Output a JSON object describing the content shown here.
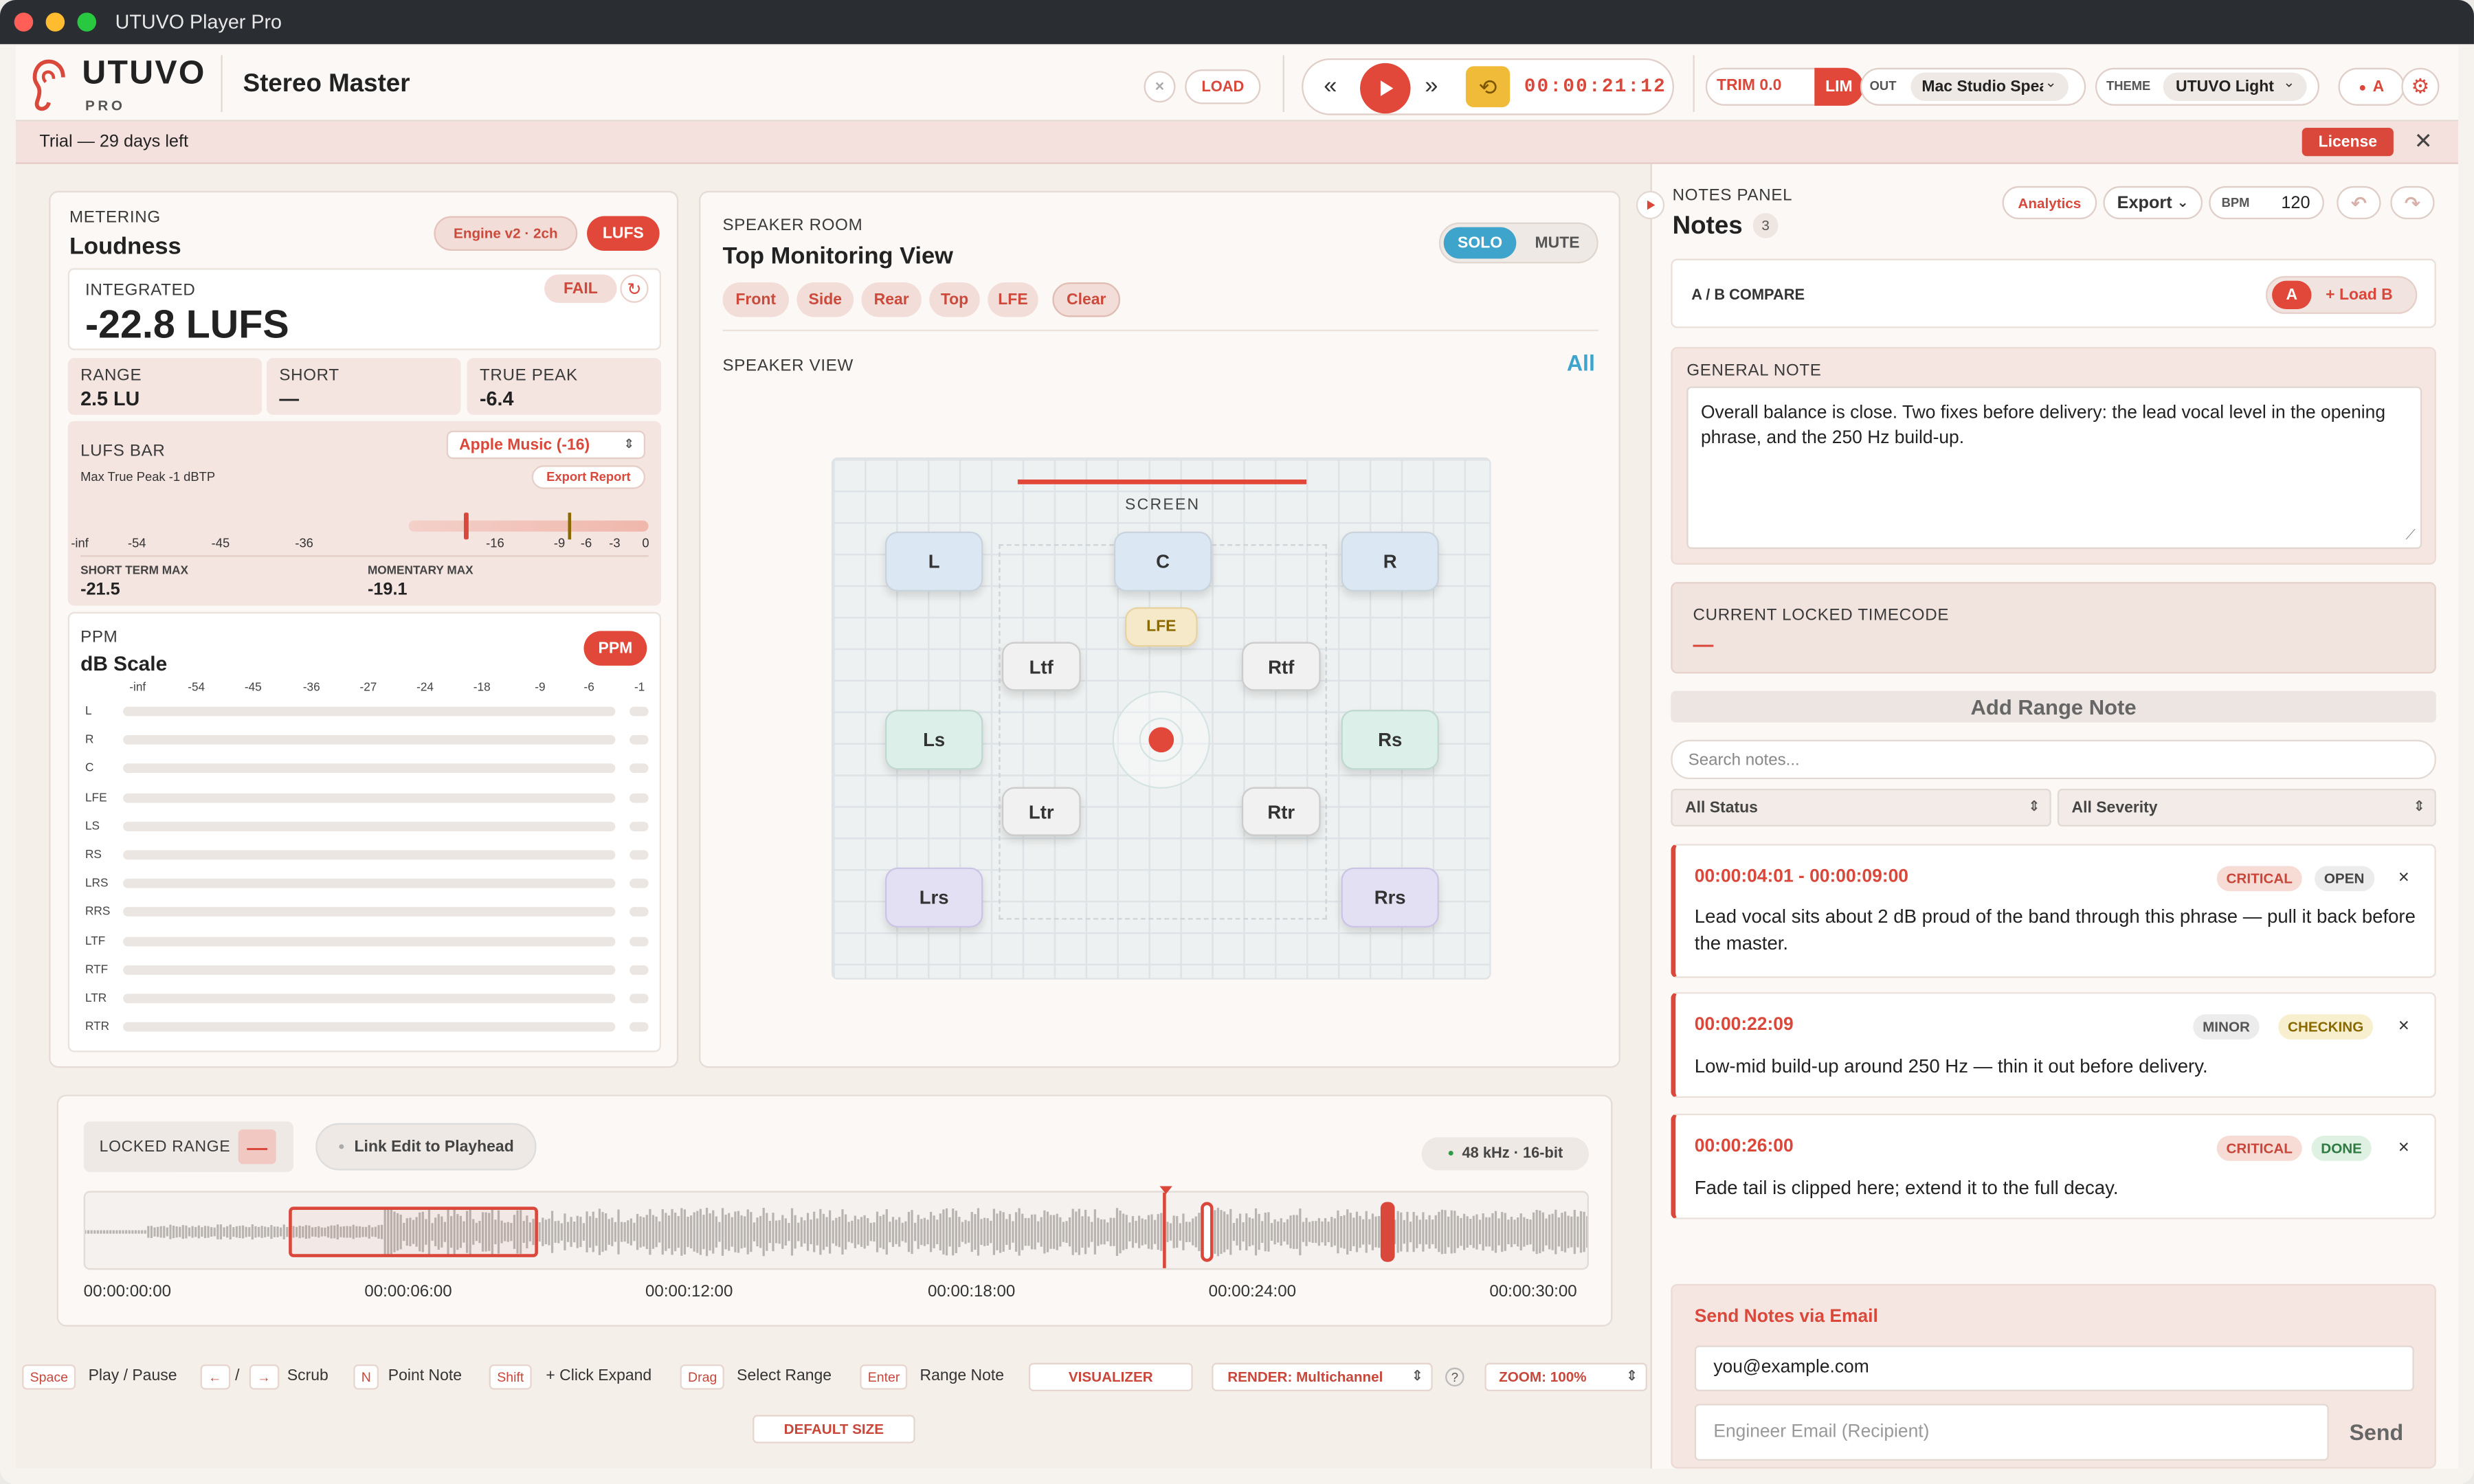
{
  "window": {
    "title": "UTUVO Player Pro"
  },
  "brand": {
    "name": "UTUVO",
    "sub": "PRO"
  },
  "project": {
    "title": "Stereo Master"
  },
  "transport": {
    "load": "LOAD",
    "clear_glyph": "×",
    "timecode": "00:00:21:12"
  },
  "toolbar": {
    "trim": "TRIM 0.0",
    "lim": "LIM",
    "out_label": "OUT",
    "out_value": "Mac Studio Spea",
    "theme_label": "THEME",
    "theme_value": "UTUVO Light",
    "ab": "A"
  },
  "trial": {
    "text": "Trial — 29 days left",
    "license": "License"
  },
  "metering": {
    "section": "METERING",
    "title": "Loudness",
    "engine": "Engine v2 · 2ch",
    "lufs_btn": "LUFS",
    "integrated_label": "INTEGRATED",
    "fail": "FAIL",
    "integrated_value": "-22.8 LUFS",
    "range_label": "RANGE",
    "range_value": "2.5 LU",
    "short_label": "SHORT",
    "short_value": "—",
    "tp_label": "TRUE PEAK",
    "tp_value": "-6.4",
    "lufsbar_label": "LUFS BAR",
    "target": "Apple Music (-16)",
    "max_tp": "Max True Peak -1 dBTP",
    "export_report": "Export Report",
    "scale": [
      "-inf",
      "-54",
      "-45",
      "-36",
      "-16",
      "-9",
      "-6",
      "-3",
      "0"
    ],
    "st_label": "SHORT TERM MAX",
    "st_value": "-21.5",
    "mom_label": "MOMENTARY MAX",
    "mom_value": "-19.1",
    "lufs_current": -22.8,
    "lufs_target": -16
  },
  "ppm": {
    "label": "PPM",
    "title": "dB Scale",
    "btn": "PPM",
    "scale": [
      "-inf",
      "-54",
      "-45",
      "-36",
      "-27",
      "-24",
      "-18",
      "-9",
      "-6",
      "-1"
    ],
    "channels": [
      "L",
      "R",
      "C",
      "LFE",
      "LS",
      "RS",
      "LRS",
      "RRS",
      "LTF",
      "RTF",
      "LTR",
      "RTR"
    ]
  },
  "speaker_room": {
    "section": "SPEAKER ROOM",
    "title": "Top Monitoring View",
    "solo": "SOLO",
    "mute": "MUTE",
    "filters": [
      "Front",
      "Side",
      "Rear",
      "Top",
      "LFE",
      "Clear"
    ],
    "view_label": "SPEAKER VIEW",
    "all": "All",
    "screen": "SCREEN",
    "speakers": [
      "L",
      "C",
      "R",
      "LFE",
      "Ltf",
      "Rtf",
      "Ls",
      "Rs",
      "Ltr",
      "Rtr",
      "Lrs",
      "Rrs"
    ]
  },
  "timeline": {
    "locked_range": "LOCKED RANGE",
    "locked_value": "—",
    "link_edit": "Link Edit to Playhead",
    "format": "48 kHz · 16-bit",
    "ticks": [
      "00:00:00:00",
      "00:00:06:00",
      "00:00:12:00",
      "00:00:18:00",
      "00:00:24:00",
      "00:00:30:00"
    ]
  },
  "shortcuts": {
    "keys": [
      "Space",
      "Play / Pause",
      "←",
      "/",
      "→",
      "Scrub",
      "N",
      "Point Note",
      "Shift",
      "+ Click Expand",
      "Drag",
      "Select Range",
      "Enter",
      "Range Note"
    ],
    "visualizer": "VISUALIZER",
    "render": "RENDER: Multichannel",
    "help": "?",
    "zoom": "ZOOM: 100%",
    "default_size": "DEFAULT SIZE"
  },
  "notes": {
    "section": "NOTES PANEL",
    "title": "Notes",
    "count": "3",
    "analytics": "Analytics",
    "export": "Export",
    "bpm_label": "BPM",
    "bpm_value": "120",
    "ab_label": "A / B COMPARE",
    "ab_a": "A",
    "ab_load": "+ Load B",
    "general_label": "GENERAL NOTE",
    "general_text": "Overall balance is close. Two fixes before delivery: the lead vocal level in the opening phrase, and the 250 Hz build-up.",
    "locked_label": "CURRENT LOCKED TIMECODE",
    "locked_value": "—",
    "add_range": "Add Range Note",
    "search_placeholder": "Search notes...",
    "status_filter": "All Status",
    "severity_filter": "All Severity",
    "items": [
      {
        "time": "00:00:04:01 - 00:00:09:00",
        "severity": "CRITICAL",
        "status": "OPEN",
        "text": "Lead vocal sits about 2 dB proud of the band through this phrase — pull it back before the master."
      },
      {
        "time": "00:00:22:09",
        "severity": "MINOR",
        "status": "CHECKING",
        "text": "Low-mid build-up around 250 Hz — thin it out before delivery."
      },
      {
        "time": "00:00:26:00",
        "severity": "CRITICAL",
        "status": "DONE",
        "text": "Fade tail is clipped here; extend it to the full decay."
      }
    ],
    "email_title": "Send Notes via Email",
    "email_value": "you@example.com",
    "engineer_placeholder": "Engineer Email (Recipient)",
    "send": "Send"
  }
}
